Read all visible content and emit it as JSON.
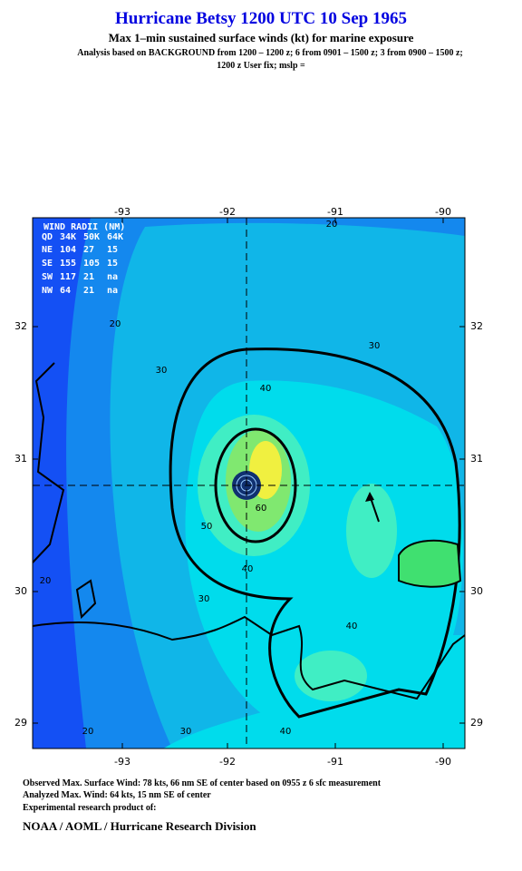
{
  "header": {
    "title": "Hurricane Betsy 1200 UTC 10 Sep 1965",
    "subtitle": "Max 1–min sustained surface winds (kt) for marine exposure",
    "analysis_line1": "Analysis based on  BACKGROUND from 1200 – 1200 z;  6 from 0901 – 1500 z;  3 from 0900 – 1500 z;",
    "analysis_line2": "1200 z User fix; mslp ="
  },
  "map": {
    "lon_ticks": [
      -93,
      -92,
      -91,
      -90
    ],
    "lat_ticks": [
      32,
      31,
      30,
      29
    ],
    "wind_radii": {
      "title": "WIND RADII (NM)",
      "header": [
        "QD",
        "34K",
        "50K",
        "64K"
      ],
      "rows": [
        [
          "NE",
          104,
          27,
          15
        ],
        [
          "SE",
          155,
          105,
          15
        ],
        [
          "SW",
          117,
          21,
          "na"
        ],
        [
          "NW",
          64,
          21,
          "na"
        ]
      ]
    },
    "contour_labels": [
      "20",
      "20",
      "30",
      "30",
      "40",
      "50",
      "60",
      "40",
      "40",
      "30",
      "20",
      "40",
      "30",
      "20"
    ]
  },
  "footer": {
    "observed": "Observed Max. Surface Wind: 78 kts, 66 nm SE of center based on 0955 z 6 sfc measurement",
    "analyzed": "Analyzed Max. Wind: 64 kts, 15 nm SE of center",
    "experimental": "Experimental research product of:",
    "agency": "NOAA / AOML / Hurricane Research Division"
  }
}
